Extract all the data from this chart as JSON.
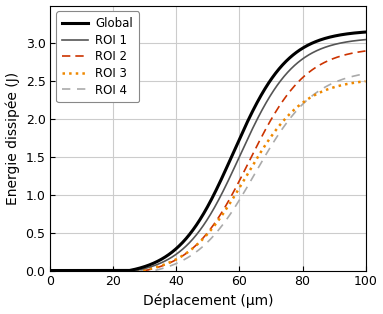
{
  "xlabel": "Déplacement (μm)",
  "ylabel": "Energie dissipée (J)",
  "xlim": [
    0,
    100
  ],
  "ylim": [
    0,
    3.5
  ],
  "xticks": [
    0,
    20,
    40,
    60,
    80,
    100
  ],
  "yticks": [
    0,
    0.5,
    1,
    1.5,
    2,
    2.5,
    3
  ],
  "legend": [
    {
      "label": "Global",
      "color": "#000000",
      "linestyle": "solid",
      "linewidth": 2.2
    },
    {
      "label": "ROI 1",
      "color": "#555555",
      "linestyle": "solid",
      "linewidth": 1.2
    },
    {
      "label": "ROI 2",
      "color": "#cc3300",
      "linestyle": "dashed",
      "linewidth": 1.2
    },
    {
      "label": "ROI 3",
      "color": "#ee8800",
      "linestyle": "dotted",
      "linewidth": 1.8
    },
    {
      "label": "ROI 4",
      "color": "#aaaaaa",
      "linestyle": "dashed",
      "linewidth": 1.2
    }
  ],
  "background_color": "#ffffff",
  "grid_color": "#cccccc",
  "font_size_labels": 10,
  "font_size_ticks": 9,
  "font_size_legend": 8.5,
  "curves": {
    "global": {
      "x0": 25.0,
      "power": 2.5,
      "end_val": 3.15
    },
    "roi1": {
      "x0": 27.0,
      "power": 2.6,
      "end_val": 3.05
    },
    "roi2": {
      "x0": 30.0,
      "power": 2.3,
      "end_val": 2.9
    },
    "roi3": {
      "x0": 29.0,
      "power": 2.2,
      "end_val": 2.5
    },
    "roi4": {
      "x0": 33.0,
      "power": 2.0,
      "end_val": 2.6
    }
  }
}
